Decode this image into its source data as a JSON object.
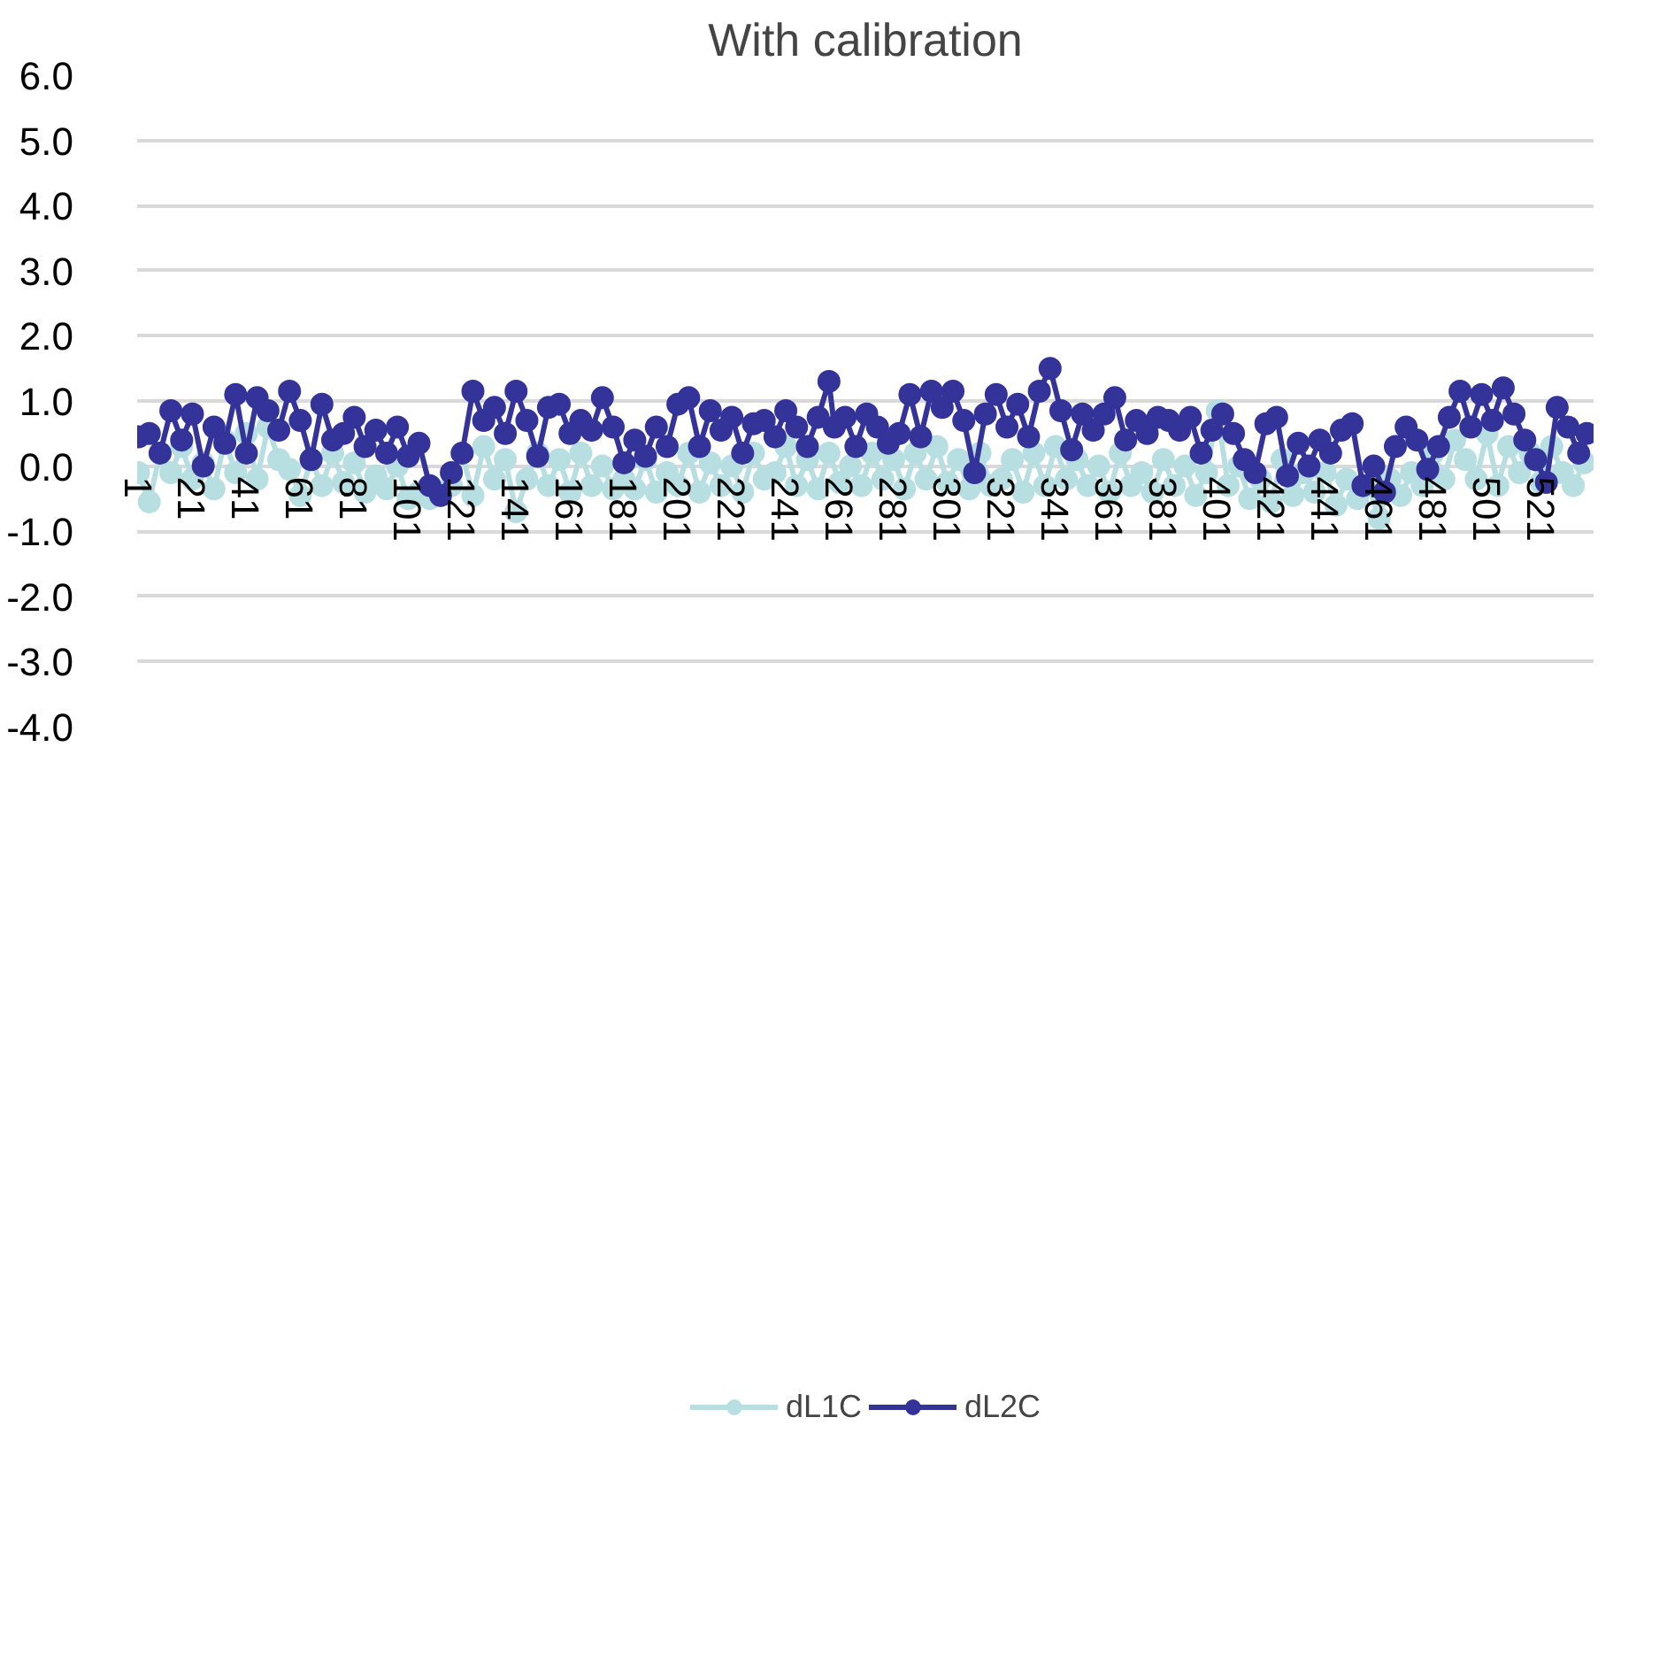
{
  "chart_data": {
    "type": "line",
    "title": "With calibration",
    "xlim": [
      0.5,
      540.5
    ],
    "ylim": [
      -4.0,
      6.0
    ],
    "xticks": [
      1,
      21,
      41,
      61,
      81,
      101,
      121,
      141,
      161,
      181,
      201,
      221,
      241,
      261,
      281,
      301,
      321,
      341,
      361,
      381,
      401,
      421,
      441,
      461,
      481,
      501,
      521
    ],
    "yticks": [
      {
        "value": -4,
        "label": "-4.0"
      },
      {
        "value": -3,
        "label": "-3.0"
      },
      {
        "value": -2,
        "label": "-2.0"
      },
      {
        "value": -1,
        "label": "-1.0"
      },
      {
        "value": 0,
        "label": "0.0"
      },
      {
        "value": 1,
        "label": "1.0"
      },
      {
        "value": 2,
        "label": "2.0"
      },
      {
        "value": 3,
        "label": "3.0"
      },
      {
        "value": 4,
        "label": "4.0"
      },
      {
        "value": 5,
        "label": "5.0"
      },
      {
        "value": 6,
        "label": "6.0"
      }
    ],
    "grid": "y",
    "legend": "bottom",
    "marker": "circle",
    "line_style": "solid",
    "series": [
      {
        "name": "dL1C",
        "color": "#b7dfe2",
        "x": [
          1,
          5,
          9,
          13,
          17,
          21,
          25,
          29,
          33,
          37,
          41,
          45,
          49,
          53,
          57,
          61,
          65,
          69,
          73,
          77,
          81,
          85,
          89,
          93,
          97,
          101,
          105,
          109,
          113,
          117,
          121,
          125,
          129,
          133,
          137,
          141,
          145,
          149,
          153,
          157,
          161,
          165,
          169,
          173,
          177,
          181,
          185,
          189,
          193,
          197,
          201,
          205,
          209,
          213,
          217,
          221,
          225,
          229,
          233,
          237,
          241,
          245,
          249,
          253,
          257,
          261,
          265,
          269,
          273,
          277,
          281,
          285,
          289,
          293,
          297,
          301,
          305,
          309,
          313,
          317,
          321,
          325,
          329,
          333,
          337,
          341,
          345,
          349,
          353,
          357,
          361,
          365,
          369,
          373,
          377,
          381,
          385,
          389,
          393,
          397,
          401,
          405,
          409,
          413,
          417,
          421,
          425,
          429,
          433,
          437,
          441,
          445,
          449,
          453,
          457,
          461,
          465,
          469,
          473,
          477,
          481,
          485,
          489,
          493,
          497,
          501,
          505,
          509,
          513,
          517,
          521,
          525,
          529,
          533,
          537
        ],
        "values": [
          -0.1,
          -0.55,
          0.2,
          -0.1,
          0.3,
          -0.2,
          0.05,
          -0.35,
          0.4,
          -0.1,
          0.5,
          -0.2,
          0.6,
          0.1,
          -0.05,
          -0.45,
          0.1,
          -0.3,
          0.2,
          -0.25,
          0.05,
          -0.4,
          -0.15,
          -0.35,
          0.0,
          -0.5,
          -0.4,
          -0.5,
          -0.45,
          -0.3,
          0.2,
          -0.45,
          0.3,
          -0.2,
          0.1,
          -0.7,
          -0.2,
          0.2,
          -0.3,
          0.1,
          -0.4,
          0.2,
          -0.3,
          0.0,
          -0.35,
          -0.2,
          -0.35,
          0.1,
          -0.4,
          -0.1,
          -0.3,
          0.2,
          -0.4,
          0.05,
          -0.3,
          0.0,
          -0.4,
          0.2,
          -0.2,
          -0.1,
          0.3,
          -0.3,
          0.1,
          -0.35,
          0.2,
          -0.25,
          0.0,
          -0.3,
          0.2,
          -0.2,
          0.1,
          -0.35,
          0.2,
          -0.2,
          0.3,
          -0.25,
          0.1,
          -0.35,
          0.2,
          -0.3,
          -0.2,
          0.1,
          -0.4,
          0.2,
          -0.3,
          0.3,
          -0.2,
          0.1,
          -0.3,
          0.0,
          -0.4,
          0.2,
          -0.3,
          -0.1,
          -0.4,
          0.1,
          -0.3,
          0.0,
          -0.45,
          -0.1,
          0.85,
          -0.3,
          0.0,
          -0.5,
          -0.2,
          -0.55,
          0.1,
          -0.45,
          -0.1,
          -0.4,
          -0.1,
          -0.6,
          -0.2,
          -0.5,
          -0.3,
          -0.8,
          -0.2,
          -0.45,
          -0.1,
          -0.3,
          0.2,
          -0.2,
          0.4,
          0.1,
          -0.2,
          0.5,
          -0.3,
          0.3,
          -0.1,
          0.2,
          -0.25,
          0.3,
          -0.1,
          -0.3,
          0.05
        ]
      },
      {
        "name": "dL2C",
        "color": "#33339a",
        "x": [
          1,
          5,
          9,
          13,
          17,
          21,
          25,
          29,
          33,
          37,
          41,
          45,
          49,
          53,
          57,
          61,
          65,
          69,
          73,
          77,
          81,
          85,
          89,
          93,
          97,
          101,
          105,
          109,
          113,
          117,
          121,
          125,
          129,
          133,
          137,
          141,
          145,
          149,
          153,
          157,
          161,
          165,
          169,
          173,
          177,
          181,
          185,
          189,
          193,
          197,
          201,
          205,
          209,
          213,
          217,
          221,
          225,
          229,
          233,
          237,
          241,
          245,
          249,
          253,
          257,
          259,
          263,
          267,
          271,
          275,
          279,
          283,
          287,
          291,
          295,
          299,
          303,
          307,
          311,
          315,
          319,
          323,
          327,
          331,
          335,
          339,
          343,
          347,
          351,
          355,
          359,
          363,
          367,
          371,
          375,
          379,
          383,
          387,
          391,
          395,
          399,
          403,
          407,
          411,
          415,
          419,
          423,
          427,
          431,
          435,
          439,
          443,
          447,
          451,
          455,
          459,
          463,
          467,
          471,
          475,
          479,
          483,
          487,
          491,
          495,
          499,
          503,
          507,
          511,
          515,
          519,
          523,
          527,
          531,
          535,
          538
        ],
        "values": [
          0.45,
          0.5,
          0.2,
          0.85,
          0.4,
          0.8,
          0.0,
          0.6,
          0.35,
          1.1,
          0.2,
          1.05,
          0.85,
          0.55,
          1.15,
          0.7,
          0.1,
          0.95,
          0.4,
          0.5,
          0.75,
          0.3,
          0.55,
          0.2,
          0.6,
          0.15,
          0.35,
          -0.3,
          -0.45,
          -0.1,
          0.2,
          1.15,
          0.7,
          0.9,
          0.5,
          1.15,
          0.7,
          0.15,
          0.9,
          0.95,
          0.5,
          0.7,
          0.55,
          1.05,
          0.6,
          0.05,
          0.4,
          0.15,
          0.6,
          0.3,
          0.95,
          1.05,
          0.3,
          0.85,
          0.55,
          0.75,
          0.2,
          0.65,
          0.7,
          0.45,
          0.85,
          0.6,
          0.3,
          0.75,
          1.3,
          0.6,
          0.75,
          0.3,
          0.8,
          0.6,
          0.35,
          0.5,
          1.1,
          0.45,
          1.15,
          0.9,
          1.15,
          0.7,
          -0.1,
          0.8,
          1.1,
          0.6,
          0.95,
          0.45,
          1.15,
          1.5,
          0.85,
          0.25,
          0.8,
          0.55,
          0.8,
          1.05,
          0.4,
          0.7,
          0.5,
          0.75,
          0.7,
          0.55,
          0.75,
          0.2,
          0.55,
          0.8,
          0.5,
          0.1,
          -0.1,
          0.65,
          0.75,
          -0.15,
          0.35,
          0.0,
          0.4,
          0.2,
          0.55,
          0.65,
          -0.3,
          0.0,
          -0.4,
          0.3,
          0.6,
          0.4,
          -0.05,
          0.3,
          0.75,
          1.15,
          0.6,
          1.1,
          0.7,
          1.2,
          0.8,
          0.4,
          0.1,
          -0.25,
          0.9,
          0.6,
          0.2,
          0.5
        ]
      }
    ]
  }
}
